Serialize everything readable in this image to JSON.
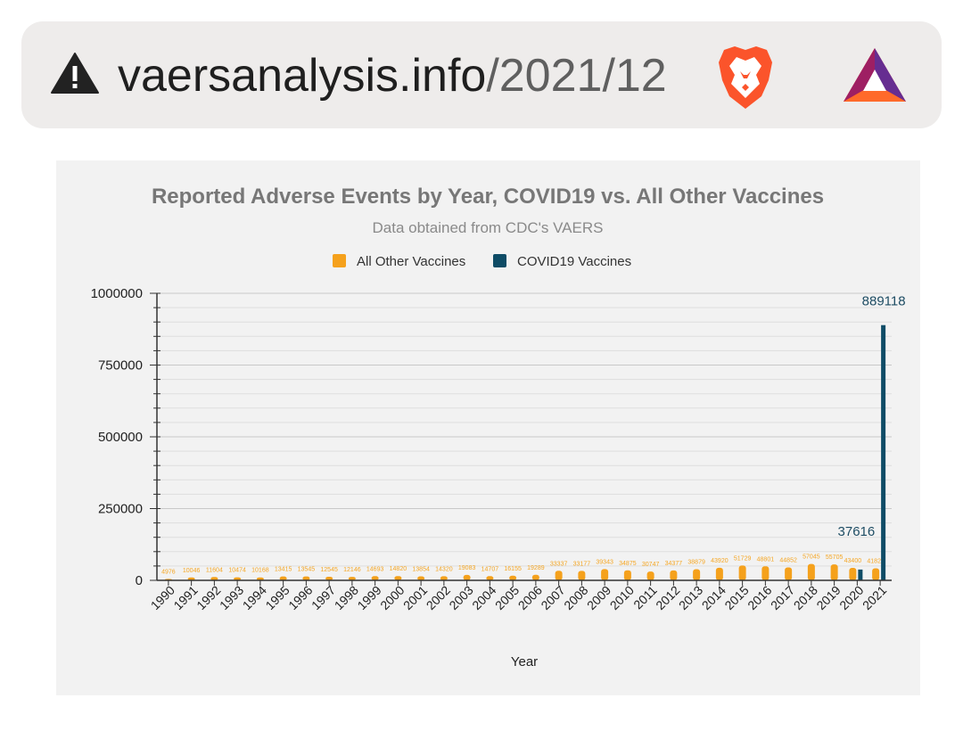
{
  "browser": {
    "url_domain": "vaersanalysis.info",
    "url_path": "/2021/12",
    "colors": {
      "warning": "#222222",
      "brave": "#fb542b",
      "bat_top": "#ff4724",
      "bat_left": "#9e1f63",
      "bat_right": "#662d91"
    }
  },
  "chart_data": {
    "type": "bar",
    "title": "Reported Adverse Events by Year, COVID19 vs. All Other Vaccines",
    "subtitle": "Data obtained from CDC's VAERS",
    "xlabel": "Year",
    "ylabel": "",
    "ylim": [
      0,
      1000000
    ],
    "yticks": [
      "1000000",
      "750000",
      "500000",
      "250000",
      "0"
    ],
    "ytick_values": [
      1000000,
      750000,
      500000,
      250000,
      0
    ],
    "categories": [
      "1990",
      "1991",
      "1992",
      "1993",
      "1994",
      "1995",
      "1996",
      "1997",
      "1998",
      "1999",
      "2000",
      "2001",
      "2002",
      "2003",
      "2004",
      "2005",
      "2006",
      "2007",
      "2008",
      "2009",
      "2010",
      "2011",
      "2012",
      "2013",
      "2014",
      "2015",
      "2016",
      "2017",
      "2018",
      "2019",
      "2020",
      "2021"
    ],
    "legend_position": "top",
    "grid": true,
    "series": [
      {
        "name": "All Other Vaccines",
        "color": "#f5a11c",
        "values": [
          4976,
          10046,
          11604,
          10474,
          10168,
          13415,
          13545,
          12545,
          12146,
          14693,
          14820,
          13854,
          14320,
          19083,
          14707,
          16155,
          19289,
          33337,
          33177,
          39343,
          34875,
          30747,
          34377,
          38879,
          43920,
          51729,
          48801,
          44852,
          57045,
          55705,
          43400,
          41822
        ],
        "labels": [
          "4976",
          "10046",
          "11604",
          "10474",
          "10168",
          "13415",
          "13545",
          "12545",
          "12146",
          "14693",
          "14820",
          "13854",
          "14320",
          "19083",
          "14707",
          "16155",
          "19289",
          "33337",
          "33177",
          "39343",
          "34875",
          "30747",
          "34377",
          "38879",
          "43920",
          "51729",
          "48801",
          "44852",
          "57045",
          "55705",
          "43400",
          "41822"
        ]
      },
      {
        "name": "COVID19 Vaccines",
        "color": "#0e4c66",
        "values": [
          null,
          null,
          null,
          null,
          null,
          null,
          null,
          null,
          null,
          null,
          null,
          null,
          null,
          null,
          null,
          null,
          null,
          null,
          null,
          null,
          null,
          null,
          null,
          null,
          null,
          null,
          null,
          null,
          null,
          null,
          37616,
          889118
        ],
        "labels": [
          "",
          "",
          "",
          "",
          "",
          "",
          "",
          "",
          "",
          "",
          "",
          "",
          "",
          "",
          "",
          "",
          "",
          "",
          "",
          "",
          "",
          "",
          "",
          "",
          "",
          "",
          "",
          "",
          "",
          "",
          "37616",
          "889118"
        ]
      }
    ]
  }
}
